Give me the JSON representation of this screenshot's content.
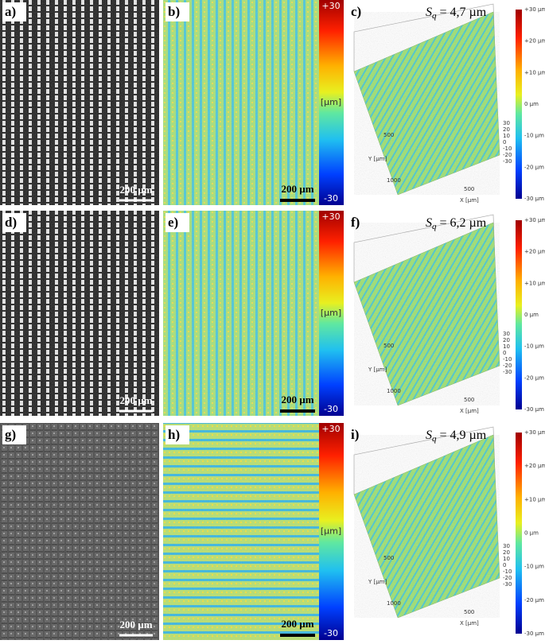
{
  "rows": [
    {
      "micrograph": {
        "label": "a)",
        "scale_bar": "200 µm"
      },
      "height_map": {
        "label": "b)",
        "scale_bar": "200 µm",
        "colorbar": {
          "top": "+30",
          "unit": "[µm]",
          "bottom": "-30"
        }
      },
      "surface_3d": {
        "label": "c)",
        "sq_symbol": "S",
        "sq_sub": "q",
        "sq_value": "= 4,7 µm",
        "colorbar_ticks": [
          "+30 µm",
          "+20 µm",
          "+10 µm",
          "0 µm",
          "-10 µm",
          "-20 µm",
          "-30 µm"
        ],
        "z_ticks": [
          "30",
          "20",
          "10",
          "0",
          "-10",
          "-20",
          "-30"
        ],
        "y_axis": {
          "label": "Y [µm]",
          "ticks": [
            "500",
            "1000"
          ]
        },
        "x_axis": {
          "label": "X [µm]",
          "ticks": [
            "500"
          ]
        }
      }
    },
    {
      "micrograph": {
        "label": "d)",
        "scale_bar": "200 µm"
      },
      "height_map": {
        "label": "e)",
        "scale_bar": "200 µm",
        "colorbar": {
          "top": "+30",
          "unit": "[µm]",
          "bottom": "-30"
        }
      },
      "surface_3d": {
        "label": "f)",
        "sq_symbol": "S",
        "sq_sub": "q",
        "sq_value": "= 6,2 µm",
        "colorbar_ticks": [
          "+30 µm",
          "+20 µm",
          "+10 µm",
          "0 µm",
          "-10 µm",
          "-20 µm",
          "-30 µm"
        ],
        "z_ticks": [
          "30",
          "20",
          "10",
          "0",
          "-10",
          "-20",
          "-30"
        ],
        "y_axis": {
          "label": "Y [µm]",
          "ticks": [
            "500",
            "1000"
          ]
        },
        "x_axis": {
          "label": "X [µm]",
          "ticks": [
            "500"
          ]
        }
      }
    },
    {
      "micrograph": {
        "label": "g)",
        "scale_bar": "200 µm"
      },
      "height_map": {
        "label": "h)",
        "scale_bar": "200 µm",
        "colorbar": {
          "top": "+30",
          "unit": "[µm]",
          "bottom": "-30"
        }
      },
      "surface_3d": {
        "label": "i)",
        "sq_symbol": "S",
        "sq_sub": "q",
        "sq_value": "= 4,9 µm",
        "colorbar_ticks": [
          "+30 µm",
          "+20 µm",
          "+10 µm",
          "0 µm",
          "-10 µm",
          "-20 µm",
          "-30 µm"
        ],
        "z_ticks": [
          "30",
          "20",
          "10",
          "0",
          "-10",
          "-20",
          "-30"
        ],
        "y_axis": {
          "label": "Y [µm]",
          "ticks": [
            "500",
            "1000"
          ]
        },
        "x_axis": {
          "label": "X [µm]",
          "ticks": [
            "500"
          ]
        }
      }
    }
  ]
}
